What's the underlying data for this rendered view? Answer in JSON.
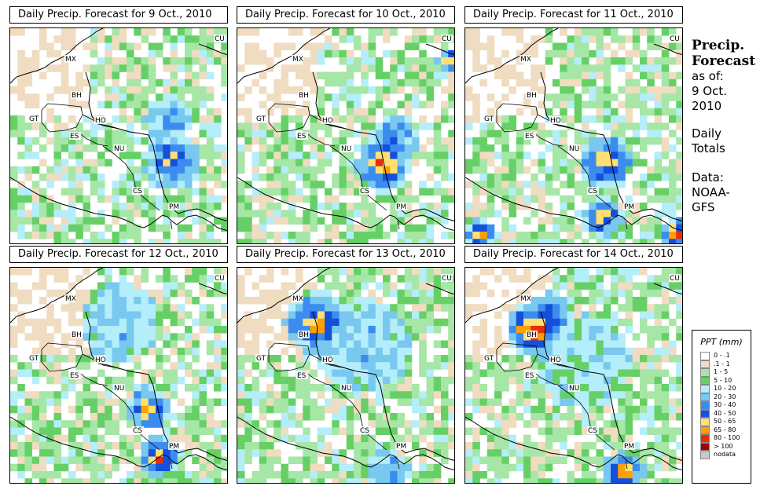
{
  "panels": [
    {
      "title": "Daily Precip. Forecast for  9 Oct., 2010"
    },
    {
      "title": "Daily Precip. Forecast for  10 Oct., 2010"
    },
    {
      "title": "Daily Precip. Forecast for  11 Oct., 2010"
    },
    {
      "title": "Daily Precip. Forecast for  12 Oct., 2010"
    },
    {
      "title": "Daily Precip. Forecast for  13 Oct., 2010"
    },
    {
      "title": "Daily Precip. Forecast for  14 Oct., 2010"
    }
  ],
  "country_labels": [
    "MX",
    "BH",
    "GT",
    "HO",
    "ES",
    "NU",
    "CS",
    "PM",
    "CU"
  ],
  "sidebar": {
    "heading_1": "Precip.",
    "heading_2": "Forecast",
    "line_1": "as of:",
    "line_2": "9 Oct.",
    "line_3": "2010",
    "line_4": "Daily",
    "line_5": "Totals",
    "line_6": "Data:",
    "line_7": "NOAA-",
    "line_8": "GFS"
  },
  "legend": {
    "title": "PPT (mm)",
    "items": [
      {
        "label": "0 - .1",
        "color": "#ffffff"
      },
      {
        "label": ".1 - 1",
        "color": "#f0dcc0"
      },
      {
        "label": "1 - 5",
        "color": "#a6e6a6"
      },
      {
        "label": "5 - 10",
        "color": "#66d066"
      },
      {
        "label": "10 - 20",
        "color": "#b4eefa"
      },
      {
        "label": "20 - 30",
        "color": "#78c8f0"
      },
      {
        "label": "30 - 40",
        "color": "#3c8cf0"
      },
      {
        "label": "40 - 50",
        "color": "#1450dc"
      },
      {
        "label": "50 - 65",
        "color": "#ffe070"
      },
      {
        "label": "65 - 80",
        "color": "#ffa000"
      },
      {
        "label": "80 - 100",
        "color": "#e62d0a"
      },
      {
        "label": "> 100",
        "color": "#a00000"
      },
      {
        "label": "nodata",
        "color": "#c8c8c8"
      }
    ]
  }
}
